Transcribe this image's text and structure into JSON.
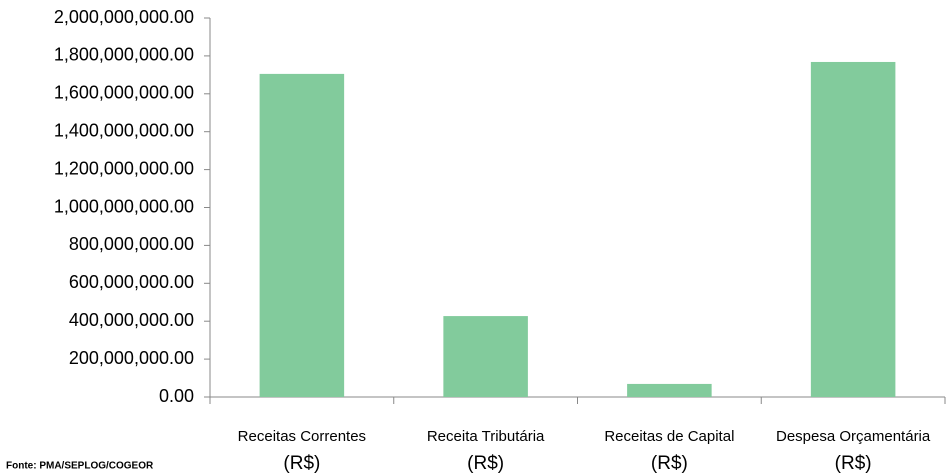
{
  "chart_data": {
    "type": "bar",
    "categories": [
      "Receitas Correntes (R$)",
      "Receita Tributária (R$)",
      "Receitas de Capital (R$)",
      "Despesa Orçamentária (R$)"
    ],
    "values": [
      1705000000,
      427000000,
      69000000,
      1768000000
    ],
    "color": "#82cb9c",
    "ylim": [
      0,
      2000000000
    ],
    "yticks": [
      {
        "value": 0,
        "label": "0.00"
      },
      {
        "value": 200000000,
        "label": "200,000,000.00"
      },
      {
        "value": 400000000,
        "label": "400,000,000.00"
      },
      {
        "value": 600000000,
        "label": "600,000,000.00"
      },
      {
        "value": 800000000,
        "label": "800,000,000.00"
      },
      {
        "value": 1000000000,
        "label": "1,000,000,000.00"
      },
      {
        "value": 1200000000,
        "label": "1,200,000,000.00"
      },
      {
        "value": 1400000000,
        "label": "1,400,000,000.00"
      },
      {
        "value": 1600000000,
        "label": "1,600,000,000.00"
      },
      {
        "value": 1800000000,
        "label": "1,800,000,000.00"
      },
      {
        "value": 2000000000,
        "label": "2,000,000,000.00"
      }
    ],
    "grid": false,
    "source": "Fonte: PMA/SEPLOG/COGEOR"
  }
}
